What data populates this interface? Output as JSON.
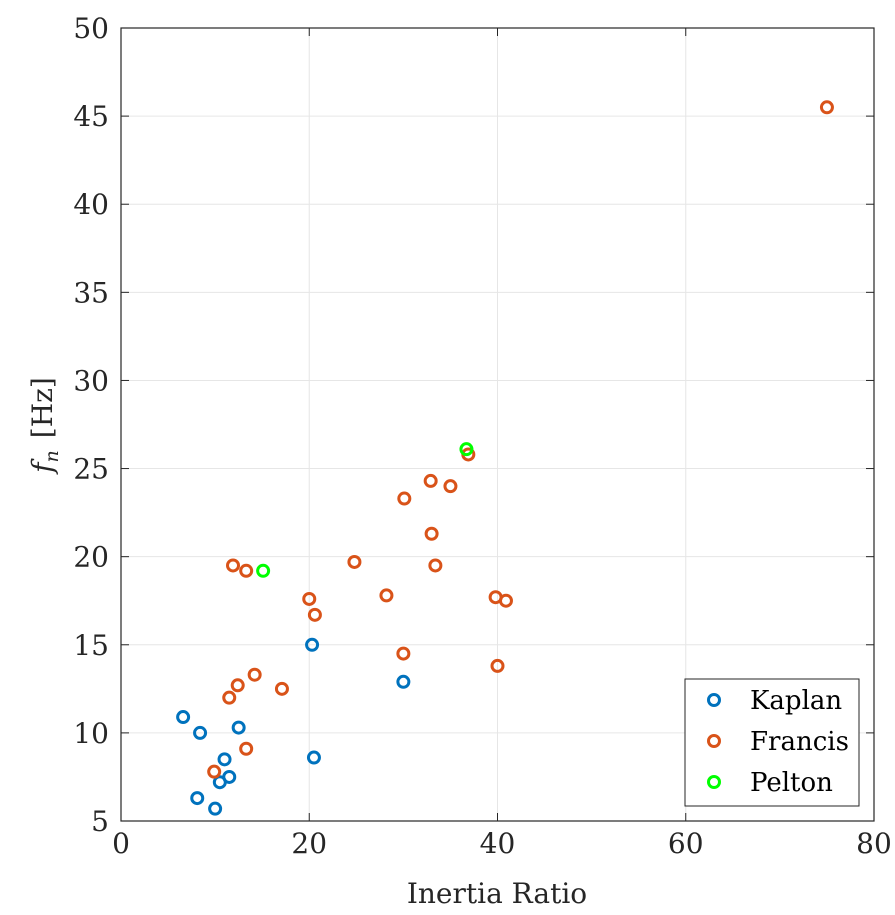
{
  "chart_data": {
    "type": "scatter",
    "xlabel": "Inertia Ratio",
    "ylabel_main": "f",
    "ylabel_sub": "n",
    "ylabel_unit": "[Hz]",
    "xlim": [
      0,
      80
    ],
    "ylim": [
      5,
      50
    ],
    "xticks": [
      0,
      20,
      40,
      60,
      80
    ],
    "yticks": [
      5,
      10,
      15,
      20,
      25,
      30,
      35,
      40,
      45,
      50
    ],
    "grid": true,
    "legend_position": "bottom-right",
    "series": [
      {
        "name": "Kaplan",
        "color": "#0072BD",
        "points": [
          [
            6.6,
            10.9
          ],
          [
            8.4,
            10.0
          ],
          [
            8.1,
            6.3
          ],
          [
            10.0,
            5.7
          ],
          [
            10.5,
            7.2
          ],
          [
            11.0,
            8.5
          ],
          [
            11.5,
            7.5
          ],
          [
            12.5,
            10.3
          ],
          [
            20.3,
            15.0
          ],
          [
            20.5,
            8.6
          ],
          [
            30.0,
            12.9
          ]
        ]
      },
      {
        "name": "Francis",
        "color": "#D95319",
        "points": [
          [
            9.9,
            7.8
          ],
          [
            11.5,
            12.0
          ],
          [
            11.9,
            19.5
          ],
          [
            12.4,
            12.7
          ],
          [
            13.3,
            9.1
          ],
          [
            13.3,
            19.2
          ],
          [
            14.2,
            13.3
          ],
          [
            17.1,
            12.5
          ],
          [
            20.0,
            17.6
          ],
          [
            20.6,
            16.7
          ],
          [
            24.8,
            19.7
          ],
          [
            28.2,
            17.8
          ],
          [
            30.0,
            14.5
          ],
          [
            30.1,
            23.3
          ],
          [
            32.9,
            24.3
          ],
          [
            33.0,
            21.3
          ],
          [
            33.4,
            19.5
          ],
          [
            35.0,
            24.0
          ],
          [
            36.9,
            25.8
          ],
          [
            39.8,
            17.7
          ],
          [
            40.0,
            13.8
          ],
          [
            40.9,
            17.5
          ],
          [
            75.0,
            45.5
          ]
        ]
      },
      {
        "name": "Pelton",
        "color": "#00FF00",
        "points": [
          [
            15.1,
            19.2
          ],
          [
            36.7,
            26.1
          ]
        ]
      }
    ]
  }
}
